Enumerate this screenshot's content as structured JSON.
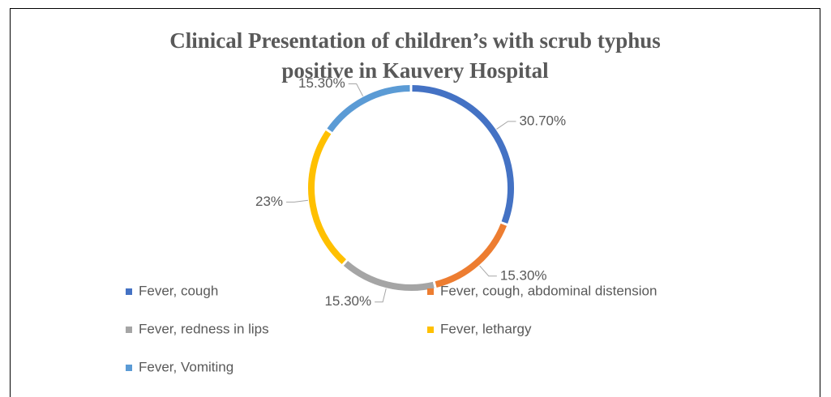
{
  "chart_data": {
    "type": "donut",
    "title": "Clinical Presentation of children’s with scrub typhus positive in Kauvery Hospital",
    "categories": [
      "Fever, cough",
      "Fever, cough, abdominal distension",
      "Fever, redness in lips",
      "Fever, lethargy",
      "Fever, Vomiting"
    ],
    "values": [
      30.7,
      15.3,
      15.3,
      23,
      15.3
    ],
    "value_labels": [
      "30.70%",
      "15.30%",
      "15.30%",
      "23%",
      "15.30%"
    ],
    "colors": [
      "#4472c4",
      "#ed7d31",
      "#a5a5a5",
      "#ffc000",
      "#5b9bd5"
    ],
    "legend": "bottom"
  }
}
